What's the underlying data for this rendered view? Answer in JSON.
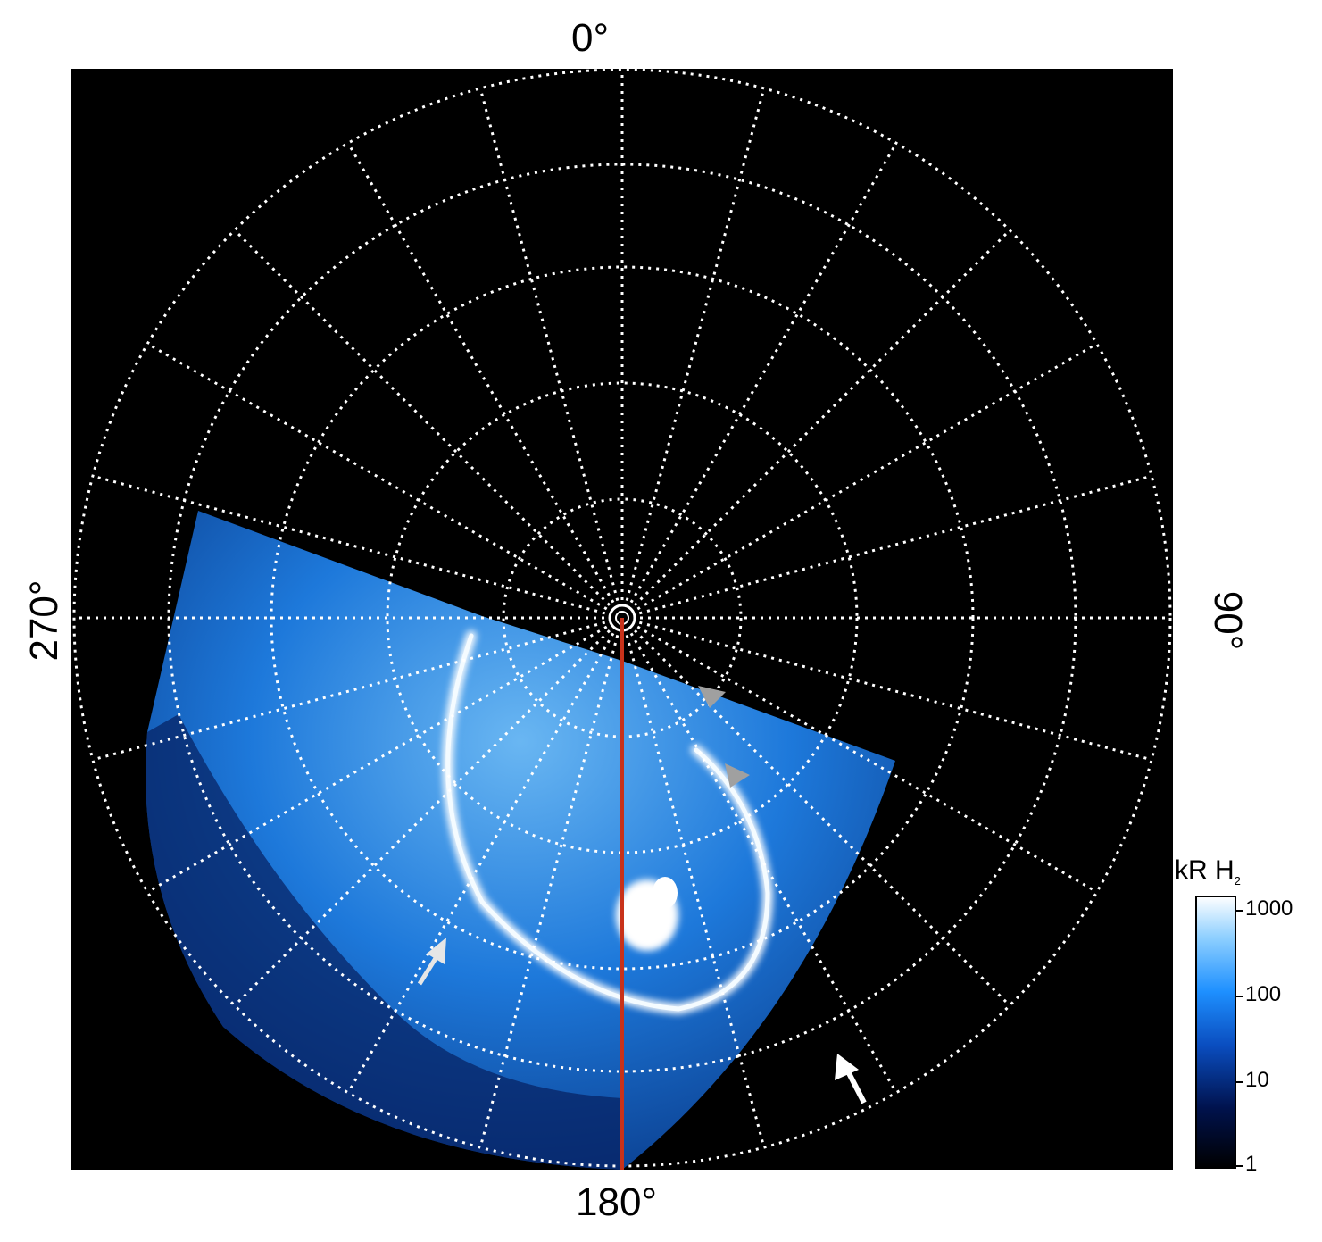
{
  "labels": {
    "top": "0°",
    "bottom": "180°",
    "left": "270°",
    "right": "90°"
  },
  "colorbar": {
    "title": "kR H",
    "title_subscript": "2",
    "ticks": [
      "1000",
      "100",
      "10",
      "1"
    ],
    "colors": [
      "#000000",
      "#00124d",
      "#0a4dbf",
      "#1e90ff",
      "#8fd0ff",
      "#ffffff"
    ]
  },
  "colors": {
    "background": "#000000",
    "grid": "#ffffff",
    "meridian_line": "#c8321a",
    "aurora_blue": "#1f7fe6",
    "arrow_white": "#ffffff",
    "arrow_gray": "#a0a0a0"
  }
}
